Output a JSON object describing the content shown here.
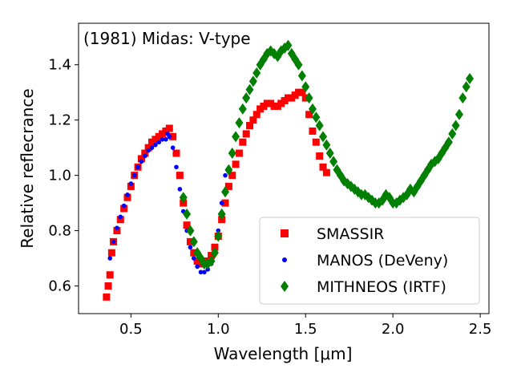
{
  "chart_data": {
    "type": "scatter",
    "annotation": "(1981) Midas: V-type",
    "xlabel": "Wavelength [μm]",
    "ylabel": "Relative reflecrance",
    "xlim": [
      0.2,
      2.55
    ],
    "ylim": [
      0.5,
      1.55
    ],
    "xticks": [
      0.5,
      1.0,
      1.5,
      2.0,
      2.5
    ],
    "xtick_labels": [
      "0.5",
      "1.0",
      "1.5",
      "2.0",
      "2.5"
    ],
    "yticks": [
      0.6,
      0.8,
      1.0,
      1.2,
      1.4
    ],
    "ytick_labels": [
      "0.6",
      "0.8",
      "1.0",
      "1.2",
      "1.4"
    ],
    "legend_position": "bottom-right",
    "series": [
      {
        "name": "SMASSIR",
        "marker": "square",
        "color": "#ff0000",
        "x": [
          0.36,
          0.37,
          0.38,
          0.39,
          0.4,
          0.42,
          0.44,
          0.46,
          0.48,
          0.5,
          0.52,
          0.54,
          0.56,
          0.58,
          0.6,
          0.62,
          0.64,
          0.66,
          0.68,
          0.7,
          0.72,
          0.74,
          0.76,
          0.78,
          0.8,
          0.82,
          0.84,
          0.86,
          0.88,
          0.9,
          0.92,
          0.94,
          0.96,
          0.98,
          1.0,
          1.02,
          1.04,
          1.06,
          1.08,
          1.1,
          1.12,
          1.14,
          1.16,
          1.18,
          1.2,
          1.22,
          1.24,
          1.26,
          1.28,
          1.3,
          1.32,
          1.34,
          1.36,
          1.38,
          1.4,
          1.42,
          1.44,
          1.46,
          1.48,
          1.5,
          1.52,
          1.54,
          1.56,
          1.58,
          1.6,
          1.62
        ],
        "y": [
          0.56,
          0.6,
          0.64,
          0.72,
          0.76,
          0.8,
          0.84,
          0.88,
          0.92,
          0.96,
          1.0,
          1.03,
          1.06,
          1.08,
          1.1,
          1.12,
          1.13,
          1.14,
          1.15,
          1.16,
          1.17,
          1.14,
          1.08,
          1.0,
          0.9,
          0.82,
          0.76,
          0.72,
          0.69,
          0.68,
          0.68,
          0.69,
          0.71,
          0.74,
          0.78,
          0.84,
          0.9,
          0.96,
          1.0,
          1.04,
          1.08,
          1.12,
          1.15,
          1.18,
          1.2,
          1.22,
          1.24,
          1.25,
          1.26,
          1.26,
          1.25,
          1.25,
          1.26,
          1.27,
          1.28,
          1.28,
          1.29,
          1.3,
          1.3,
          1.28,
          1.22,
          1.16,
          1.12,
          1.07,
          1.03,
          1.01
        ]
      },
      {
        "name": "MANOS (DeVeny)",
        "marker": "circle",
        "color": "#0000ff",
        "x": [
          0.38,
          0.4,
          0.42,
          0.44,
          0.46,
          0.48,
          0.5,
          0.52,
          0.54,
          0.56,
          0.58,
          0.6,
          0.62,
          0.64,
          0.66,
          0.68,
          0.7,
          0.71,
          0.72,
          0.74,
          0.76,
          0.78,
          0.8,
          0.82,
          0.84,
          0.86,
          0.88,
          0.9,
          0.92,
          0.94,
          0.96,
          0.98,
          1.0,
          1.02,
          1.04
        ],
        "y": [
          0.7,
          0.76,
          0.81,
          0.85,
          0.89,
          0.93,
          0.97,
          1.0,
          1.03,
          1.05,
          1.07,
          1.09,
          1.1,
          1.11,
          1.12,
          1.13,
          1.13,
          1.15,
          1.14,
          1.1,
          1.03,
          0.95,
          0.87,
          0.8,
          0.74,
          0.7,
          0.67,
          0.65,
          0.65,
          0.66,
          0.68,
          0.72,
          0.8,
          0.9,
          1.0
        ]
      },
      {
        "name": "MITHNEOS (IRTF)",
        "marker": "diamond",
        "color": "#008000",
        "x": [
          0.8,
          0.82,
          0.84,
          0.86,
          0.88,
          0.9,
          0.92,
          0.94,
          0.96,
          0.98,
          1.0,
          1.02,
          1.04,
          1.06,
          1.08,
          1.1,
          1.12,
          1.14,
          1.16,
          1.18,
          1.2,
          1.22,
          1.24,
          1.26,
          1.28,
          1.3,
          1.32,
          1.34,
          1.36,
          1.38,
          1.4,
          1.42,
          1.44,
          1.46,
          1.48,
          1.5,
          1.52,
          1.54,
          1.56,
          1.58,
          1.6,
          1.62,
          1.64,
          1.66,
          1.68,
          1.7,
          1.72,
          1.74,
          1.76,
          1.78,
          1.8,
          1.82,
          1.84,
          1.86,
          1.88,
          1.9,
          1.92,
          1.94,
          1.96,
          1.98,
          2.0,
          2.02,
          2.04,
          2.06,
          2.08,
          2.1,
          2.12,
          2.14,
          2.16,
          2.18,
          2.2,
          2.22,
          2.24,
          2.26,
          2.28,
          2.3,
          2.32,
          2.34,
          2.36,
          2.38,
          2.4,
          2.42,
          2.44
        ],
        "y": [
          0.92,
          0.86,
          0.8,
          0.76,
          0.72,
          0.7,
          0.68,
          0.68,
          0.69,
          0.72,
          0.78,
          0.86,
          0.94,
          1.02,
          1.08,
          1.14,
          1.19,
          1.24,
          1.28,
          1.31,
          1.34,
          1.37,
          1.4,
          1.42,
          1.44,
          1.45,
          1.44,
          1.43,
          1.45,
          1.46,
          1.47,
          1.44,
          1.42,
          1.4,
          1.36,
          1.32,
          1.28,
          1.24,
          1.21,
          1.18,
          1.14,
          1.11,
          1.08,
          1.05,
          1.02,
          1.0,
          0.98,
          0.97,
          0.96,
          0.95,
          0.94,
          0.93,
          0.93,
          0.92,
          0.91,
          0.9,
          0.9,
          0.91,
          0.93,
          0.92,
          0.9,
          0.9,
          0.91,
          0.92,
          0.93,
          0.95,
          0.94,
          0.96,
          0.98,
          1.0,
          1.02,
          1.04,
          1.05,
          1.06,
          1.08,
          1.1,
          1.12,
          1.15,
          1.18,
          1.22,
          1.28,
          1.32,
          1.35
        ]
      }
    ]
  }
}
